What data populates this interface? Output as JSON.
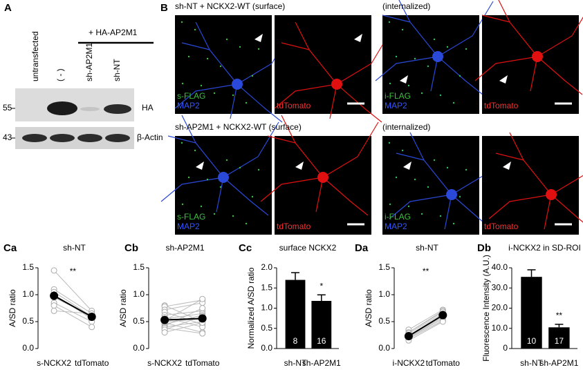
{
  "figure": {
    "panel_a": {
      "label": "A",
      "lanes": [
        "untransfected",
        "( - )",
        "sh-AP2M1",
        "sh-NT"
      ],
      "treatment": "+ HA-AP2M1",
      "markers": [
        55,
        43
      ],
      "blots": [
        "HA",
        "β-Actin"
      ]
    },
    "panel_b": {
      "label": "B",
      "rows": [
        {
          "title": "sh-NT + NCKX2-WT (surface)",
          "internalized": "(internalized)",
          "channels": [
            "s-FLAG",
            "MAP2",
            "tdTomato",
            "i-FLAG",
            "MAP2",
            "tdTomato"
          ]
        },
        {
          "title": "sh-AP2M1 + NCKX2-WT (surface)",
          "internalized": "(internalized)",
          "channels": [
            "s-FLAG",
            "MAP2",
            "tdTomato",
            "i-FLAG",
            "MAP2",
            "tdTomato"
          ]
        }
      ]
    }
  },
  "chart_data": [
    {
      "type": "paired",
      "panel": "Ca",
      "title": "sh-NT",
      "ylabel": "A/SD ratio",
      "categories": [
        "s-NCKX2",
        "tdTomato"
      ],
      "values": [
        0.98,
        0.59
      ],
      "errors": [
        0.08,
        0.04
      ],
      "significance": "**",
      "individual": [
        [
          1.45,
          0.7
        ],
        [
          1.1,
          0.65
        ],
        [
          1.05,
          0.6
        ],
        [
          1.0,
          0.55
        ],
        [
          0.95,
          0.6
        ],
        [
          0.85,
          0.5
        ],
        [
          0.8,
          0.4
        ],
        [
          0.7,
          0.65
        ]
      ],
      "ylim": [
        0,
        1.5
      ],
      "yticks": [
        {
          "value": 0,
          "label": "0.0"
        },
        0.5,
        {
          "value": 1,
          "label": "1.0"
        },
        1.5
      ]
    },
    {
      "type": "paired",
      "panel": "Cb",
      "title": "sh-AP2M1",
      "ylabel": "A/SD ratio",
      "categories": [
        "s-NCKX2",
        "tdTomato"
      ],
      "values": [
        0.53,
        0.56
      ],
      "errors": [
        0.04,
        0.05
      ],
      "individual": [
        [
          0.8,
          0.5
        ],
        [
          0.78,
          0.9
        ],
        [
          0.72,
          0.85
        ],
        [
          0.68,
          0.45
        ],
        [
          0.62,
          0.7
        ],
        [
          0.58,
          0.4
        ],
        [
          0.55,
          0.65
        ],
        [
          0.52,
          0.92
        ],
        [
          0.5,
          0.55
        ],
        [
          0.48,
          0.3
        ],
        [
          0.45,
          0.62
        ],
        [
          0.42,
          0.75
        ],
        [
          0.4,
          0.5
        ],
        [
          0.38,
          0.28
        ],
        [
          0.35,
          0.6
        ],
        [
          0.3,
          0.48
        ]
      ],
      "ylim": [
        0,
        1.5
      ],
      "yticks": [
        {
          "value": 0,
          "label": "0.0"
        },
        0.5,
        {
          "value": 1,
          "label": "1.0"
        },
        1.5
      ]
    },
    {
      "type": "bar",
      "panel": "Cc",
      "title": "surface NCKX2",
      "ylabel": "Normalized A/SD ratio",
      "categories": [
        "sh-NT",
        "sh-AP2M1"
      ],
      "values": [
        1.7,
        1.18
      ],
      "errors": [
        0.18,
        0.15
      ],
      "n": [
        8,
        16
      ],
      "significance": "*",
      "color": "#000000",
      "ylim": [
        0,
        2
      ],
      "yticks": [
        {
          "value": 0,
          "label": "0.0"
        },
        0.5,
        {
          "value": 1,
          "label": "1.0"
        },
        1.5,
        {
          "value": 2,
          "label": "2.0"
        }
      ]
    },
    {
      "type": "paired",
      "panel": "Da",
      "title": "sh-NT",
      "ylabel": "A/SD ratio",
      "categories": [
        "i-NCKX2",
        "tdTomato"
      ],
      "values": [
        0.23,
        0.62
      ],
      "errors": [
        0.02,
        0.03
      ],
      "significance": "**",
      "individual": [
        [
          0.35,
          0.72
        ],
        [
          0.3,
          0.7
        ],
        [
          0.3,
          0.68
        ],
        [
          0.28,
          0.65
        ],
        [
          0.25,
          0.62
        ],
        [
          0.22,
          0.6
        ],
        [
          0.2,
          0.58
        ],
        [
          0.2,
          0.55
        ],
        [
          0.18,
          0.52
        ],
        [
          0.15,
          0.5
        ]
      ],
      "ylim": [
        0,
        1.5
      ],
      "yticks": [
        {
          "value": 0,
          "label": "0.0"
        },
        0.5,
        {
          "value": 1,
          "label": "1.0"
        },
        1.5
      ]
    },
    {
      "type": "bar",
      "panel": "Db",
      "title": "i-NCKX2 in SD-ROI",
      "ylabel": "Fluorescence Intensity (A.U.)",
      "categories": [
        "sh-NT",
        "sh-AP2M1"
      ],
      "values": [
        35.5,
        10.5
      ],
      "errors": [
        3.5,
        1.5
      ],
      "n": [
        10,
        17
      ],
      "significance": "**",
      "color": "#000000",
      "ylim": [
        0,
        40
      ],
      "yticks": [
        0,
        {
          "value": 10,
          "label": "10.0"
        },
        {
          "value": 20,
          "label": "20.0"
        },
        {
          "value": 30,
          "label": "30.0"
        },
        {
          "value": 40,
          "label": "40.0"
        }
      ]
    }
  ]
}
